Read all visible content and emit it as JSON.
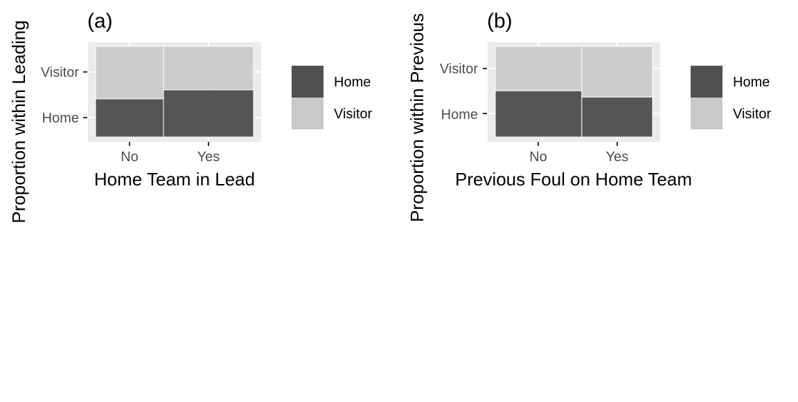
{
  "chart_data": [
    {
      "type": "bar",
      "subtype": "stacked-proportion (mosaic)",
      "tag": "(a)",
      "xlabel": "Home Team in Lead",
      "ylabel": "Proportion within Leading",
      "categories": [
        "No",
        "Yes"
      ],
      "widths": [
        0.43,
        0.57
      ],
      "series": [
        {
          "name": "Home",
          "values": [
            0.42,
            0.52
          ]
        },
        {
          "name": "Visitor",
          "values": [
            0.58,
            0.48
          ]
        }
      ],
      "ytick_labels": [
        "Home",
        "Visitor"
      ],
      "ylim": [
        0,
        1
      ],
      "grid": true,
      "legend_position": "right",
      "legend": [
        "Home",
        "Visitor"
      ]
    },
    {
      "type": "bar",
      "subtype": "stacked-proportion (mosaic)",
      "tag": "(b)",
      "xlabel": "Previous Foul on Home Team",
      "ylabel": "Proportion within Previous",
      "categories": [
        "No",
        "Yes"
      ],
      "widths": [
        0.55,
        0.45
      ],
      "series": [
        {
          "name": "Home",
          "values": [
            0.51,
            0.44
          ]
        },
        {
          "name": "Visitor",
          "values": [
            0.49,
            0.56
          ]
        }
      ],
      "ytick_labels": [
        "Home",
        "Visitor"
      ],
      "ylim": [
        0,
        1
      ],
      "grid": true,
      "legend_position": "right",
      "legend": [
        "Home",
        "Visitor"
      ]
    }
  ],
  "colors": {
    "home": "#505050",
    "visitor": "#c9c9c9",
    "panel_bg": "#ebebeb",
    "grid": "#ffffff",
    "axis_text": "#4d4d4d",
    "title_text": "#000000"
  }
}
